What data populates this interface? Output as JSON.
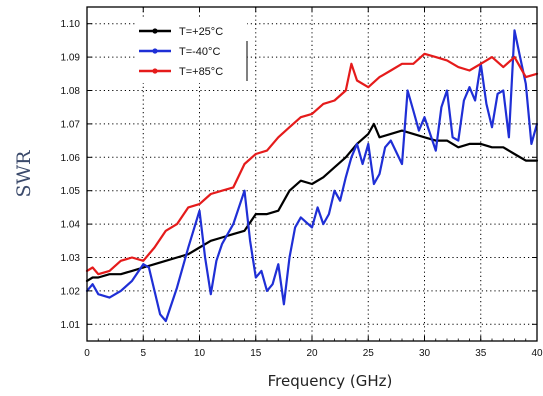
{
  "chart_data": {
    "type": "line",
    "xlabel": "Frequency (GHz)",
    "ylabel": "SWR",
    "xlim": [
      0,
      40
    ],
    "ylim": [
      1.005,
      1.105
    ],
    "xticks": [
      0,
      5,
      10,
      15,
      20,
      25,
      30,
      35,
      40
    ],
    "yticks": [
      1.01,
      1.02,
      1.03,
      1.04,
      1.05,
      1.06,
      1.07,
      1.08,
      1.09,
      1.1
    ],
    "ytick_labels": [
      "1.01",
      "1.02",
      "1.03",
      "1.04",
      "1.05",
      "1.06",
      "1.07",
      "1.08",
      "1.09",
      "1.10"
    ],
    "grid": true,
    "legend_position": "top-left",
    "series": [
      {
        "name": "T=+25°C",
        "color": "#000000",
        "x": [
          0,
          0.5,
          1,
          2,
          3,
          4,
          5,
          6,
          7,
          8,
          9,
          10,
          11,
          12,
          13,
          14,
          15,
          16,
          17,
          18,
          19,
          20,
          21,
          22,
          23,
          24,
          25,
          25.5,
          26,
          27,
          28,
          29,
          30,
          31,
          32,
          33,
          34,
          35,
          36,
          37,
          38,
          39,
          40
        ],
        "y": [
          1.023,
          1.024,
          1.024,
          1.025,
          1.025,
          1.026,
          1.027,
          1.028,
          1.029,
          1.03,
          1.031,
          1.033,
          1.035,
          1.036,
          1.037,
          1.038,
          1.043,
          1.043,
          1.044,
          1.05,
          1.053,
          1.052,
          1.054,
          1.057,
          1.06,
          1.064,
          1.067,
          1.07,
          1.066,
          1.067,
          1.068,
          1.067,
          1.066,
          1.065,
          1.065,
          1.063,
          1.064,
          1.064,
          1.063,
          1.063,
          1.061,
          1.059,
          1.059
        ]
      },
      {
        "name": "T=-40°C",
        "color": "#1f2fd6",
        "x": [
          0,
          0.5,
          1,
          2,
          3,
          4,
          5,
          5.5,
          6,
          6.5,
          7,
          8,
          9,
          10,
          10.5,
          11,
          11.5,
          12,
          13,
          14,
          14.5,
          15,
          15.5,
          16,
          16.5,
          17,
          17.5,
          18,
          18.5,
          19,
          20,
          20.5,
          21,
          21.5,
          22,
          22.5,
          23,
          23.5,
          24,
          24.5,
          25,
          25.5,
          26,
          26.5,
          27,
          28,
          28.5,
          29,
          29.5,
          30,
          31,
          31.5,
          32,
          32.5,
          33,
          33.5,
          34,
          34.5,
          35,
          35.5,
          36,
          36.5,
          37,
          37.5,
          38,
          38.5,
          39,
          39.5,
          40
        ],
        "y": [
          1.02,
          1.022,
          1.019,
          1.018,
          1.02,
          1.023,
          1.028,
          1.027,
          1.02,
          1.013,
          1.011,
          1.021,
          1.033,
          1.044,
          1.03,
          1.019,
          1.029,
          1.034,
          1.04,
          1.05,
          1.035,
          1.024,
          1.026,
          1.02,
          1.022,
          1.028,
          1.016,
          1.03,
          1.039,
          1.042,
          1.039,
          1.045,
          1.04,
          1.043,
          1.05,
          1.047,
          1.054,
          1.06,
          1.064,
          1.058,
          1.064,
          1.052,
          1.055,
          1.063,
          1.065,
          1.058,
          1.08,
          1.074,
          1.068,
          1.072,
          1.062,
          1.075,
          1.08,
          1.066,
          1.065,
          1.077,
          1.081,
          1.077,
          1.088,
          1.076,
          1.069,
          1.079,
          1.08,
          1.066,
          1.098,
          1.09,
          1.082,
          1.064,
          1.07
        ]
      },
      {
        "name": "T=+85°C",
        "color": "#e51b1b",
        "x": [
          0,
          0.5,
          1,
          2,
          3,
          4,
          5,
          6,
          7,
          8,
          9,
          10,
          11,
          12,
          13,
          14,
          15,
          16,
          17,
          18,
          19,
          20,
          21,
          22,
          23,
          23.5,
          24,
          25,
          26,
          27,
          28,
          29,
          30,
          31,
          32,
          33,
          34,
          35,
          36,
          37,
          38,
          39,
          40
        ],
        "y": [
          1.026,
          1.027,
          1.025,
          1.026,
          1.029,
          1.03,
          1.029,
          1.033,
          1.038,
          1.04,
          1.045,
          1.046,
          1.049,
          1.05,
          1.051,
          1.058,
          1.061,
          1.062,
          1.066,
          1.069,
          1.072,
          1.073,
          1.076,
          1.077,
          1.08,
          1.088,
          1.083,
          1.081,
          1.084,
          1.086,
          1.088,
          1.088,
          1.091,
          1.09,
          1.089,
          1.087,
          1.086,
          1.088,
          1.09,
          1.087,
          1.09,
          1.084,
          1.085
        ]
      }
    ]
  }
}
